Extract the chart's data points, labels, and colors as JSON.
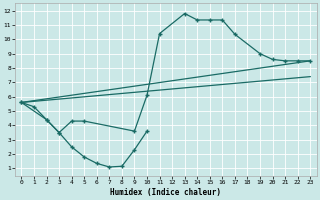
{
  "xlabel": "Humidex (Indice chaleur)",
  "xlim": [
    -0.5,
    23.5
  ],
  "ylim": [
    0.5,
    12.5
  ],
  "xticks": [
    0,
    1,
    2,
    3,
    4,
    5,
    6,
    7,
    8,
    9,
    10,
    11,
    12,
    13,
    14,
    15,
    16,
    17,
    18,
    19,
    20,
    21,
    22,
    23
  ],
  "yticks": [
    1,
    2,
    3,
    4,
    5,
    6,
    7,
    8,
    9,
    10,
    11,
    12
  ],
  "bg_color": "#cbe8e7",
  "grid_color": "#b0d8d7",
  "line_color": "#1a6b65",
  "curve1_x": [
    0,
    1,
    2,
    3,
    4,
    5,
    6,
    7,
    8,
    9,
    10
  ],
  "curve1_y": [
    5.6,
    5.3,
    4.4,
    3.5,
    2.5,
    1.8,
    1.35,
    1.1,
    1.15,
    2.3,
    3.6
  ],
  "curve2_x": [
    0,
    2,
    3,
    4,
    5,
    9,
    10,
    11,
    13,
    14,
    15,
    16,
    17,
    19,
    20,
    21,
    22,
    23
  ],
  "curve2_y": [
    5.6,
    4.4,
    3.5,
    4.3,
    4.3,
    3.6,
    6.1,
    10.4,
    11.8,
    11.35,
    11.35,
    11.35,
    10.35,
    9.0,
    8.6,
    8.5,
    8.5,
    8.5
  ],
  "line3_x": [
    0,
    23
  ],
  "line3_y": [
    5.6,
    8.5
  ],
  "line4_x": [
    0,
    23
  ],
  "line4_y": [
    5.6,
    7.4
  ]
}
